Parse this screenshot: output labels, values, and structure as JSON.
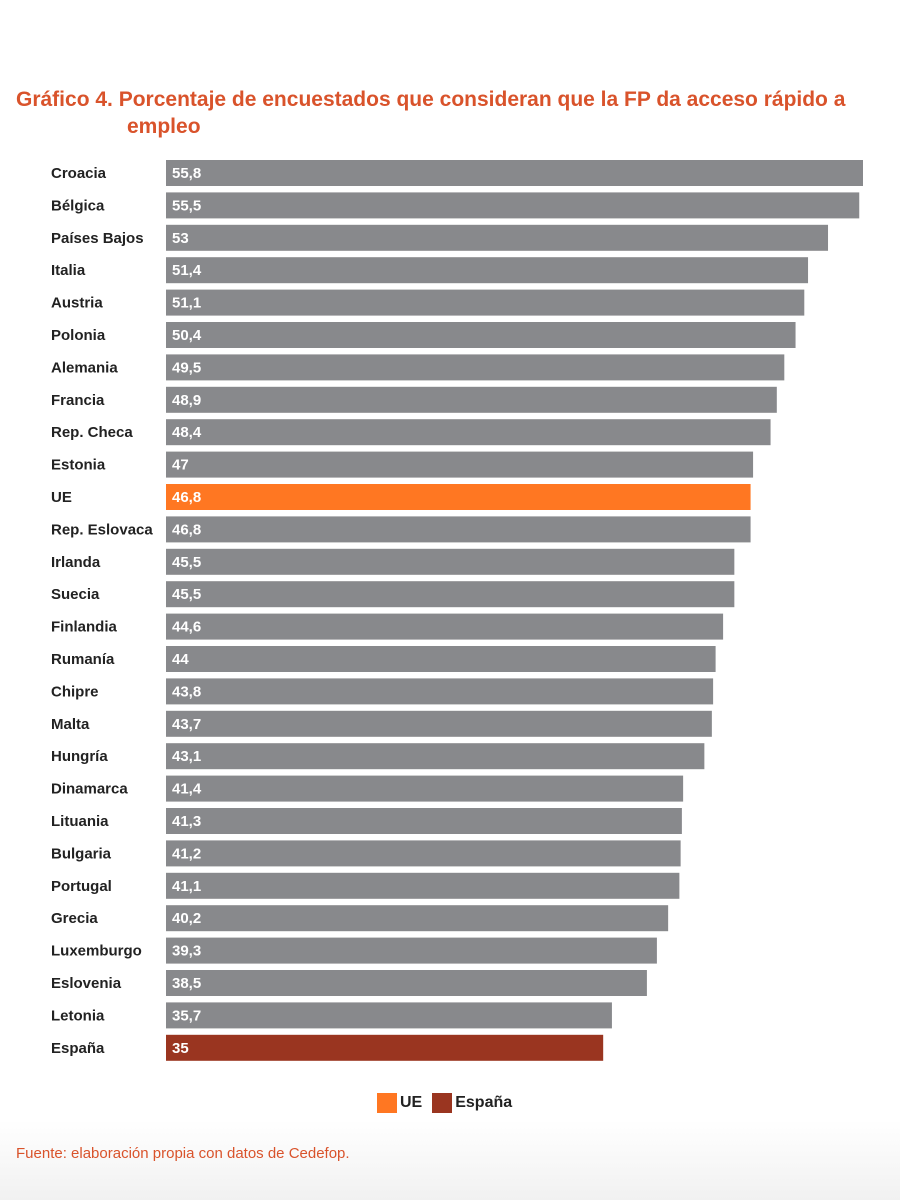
{
  "title": "Gráfico 4. Porcentaje de encuestados que consideran que la FP da acceso rápido a empleo",
  "source": "Fuente: elaboración propia con datos de Cedefop.",
  "colors": {
    "default_bar": "#88898c",
    "ue": "#ff7722",
    "espana": "#9a3520",
    "title": "#d9532b"
  },
  "legend": [
    {
      "label": "UE",
      "color": "#ff7722"
    },
    {
      "label": "España",
      "color": "#9a3520"
    }
  ],
  "chart_data": {
    "type": "bar",
    "orientation": "horizontal",
    "title": "Gráfico 4. Porcentaje de encuestados que consideran que la FP da acceso rápido a empleo",
    "xlabel": "",
    "ylabel": "",
    "xlim": [
      0,
      55.8
    ],
    "grid": false,
    "legend_position": "bottom",
    "categories": [
      "Croacia",
      "Bélgica",
      "Países Bajos",
      "Italia",
      "Austria",
      "Polonia",
      "Alemania",
      "Francia",
      "Rep. Checa",
      "Estonia",
      "UE",
      "Rep. Eslovaca",
      "Irlanda",
      "Suecia",
      "Finlandia",
      "Rumanía",
      "Chipre",
      "Malta",
      "Hungría",
      "Dinamarca",
      "Lituania",
      "Bulgaria",
      "Portugal",
      "Grecia",
      "Luxemburgo",
      "Eslovenia",
      "Letonia",
      "España"
    ],
    "values": [
      55.8,
      55.5,
      53,
      51.4,
      51.1,
      50.4,
      49.5,
      48.9,
      48.4,
      47,
      46.8,
      46.8,
      45.5,
      45.5,
      44.6,
      44,
      43.8,
      43.7,
      43.1,
      41.4,
      41.3,
      41.2,
      41.1,
      40.2,
      39.3,
      38.5,
      35.7,
      35
    ],
    "value_labels": [
      "55,8",
      "55,5",
      "53",
      "51,4",
      "51,1",
      "50,4",
      "49,5",
      "48,9",
      "48,4",
      "47",
      "46,8",
      "46,8",
      "45,5",
      "45,5",
      "44,6",
      "44",
      "43,8",
      "43,7",
      "43,1",
      "41,4",
      "41,3",
      "41,2",
      "41,1",
      "40,2",
      "39,3",
      "38,5",
      "35,7",
      "35"
    ],
    "highlights": {
      "UE": "#ff7722",
      "España": "#9a3520"
    }
  }
}
